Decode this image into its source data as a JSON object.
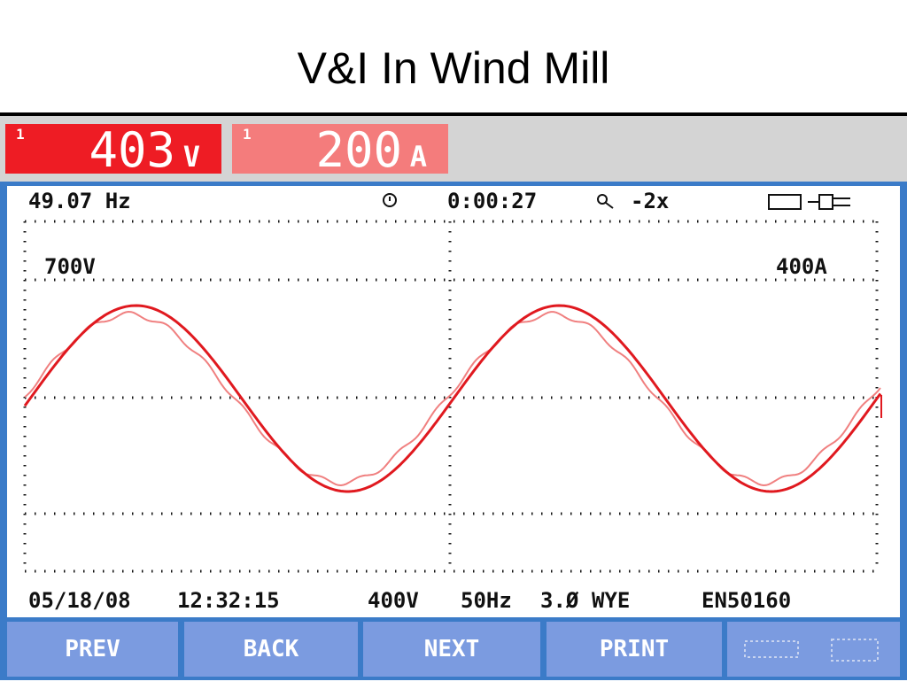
{
  "title": "V&I In Wind Mill",
  "readings": [
    {
      "channel": "1",
      "value": "403",
      "unit": "V"
    },
    {
      "channel": "1",
      "value": "200",
      "unit": "A"
    }
  ],
  "status": {
    "frequency": "49.07 Hz",
    "timer": "0:00:27",
    "zoom": "-2x"
  },
  "scale": {
    "voltage": "700V",
    "current": "400A"
  },
  "footer": {
    "date": "05/18/08",
    "time": "12:32:15",
    "nominal_voltage": "400V",
    "nominal_frequency": "50Hz",
    "phases": "3.Ø",
    "config": "WYE",
    "standard": "EN50160"
  },
  "buttons": [
    "PREV",
    "BACK",
    "NEXT",
    "PRINT"
  ]
}
